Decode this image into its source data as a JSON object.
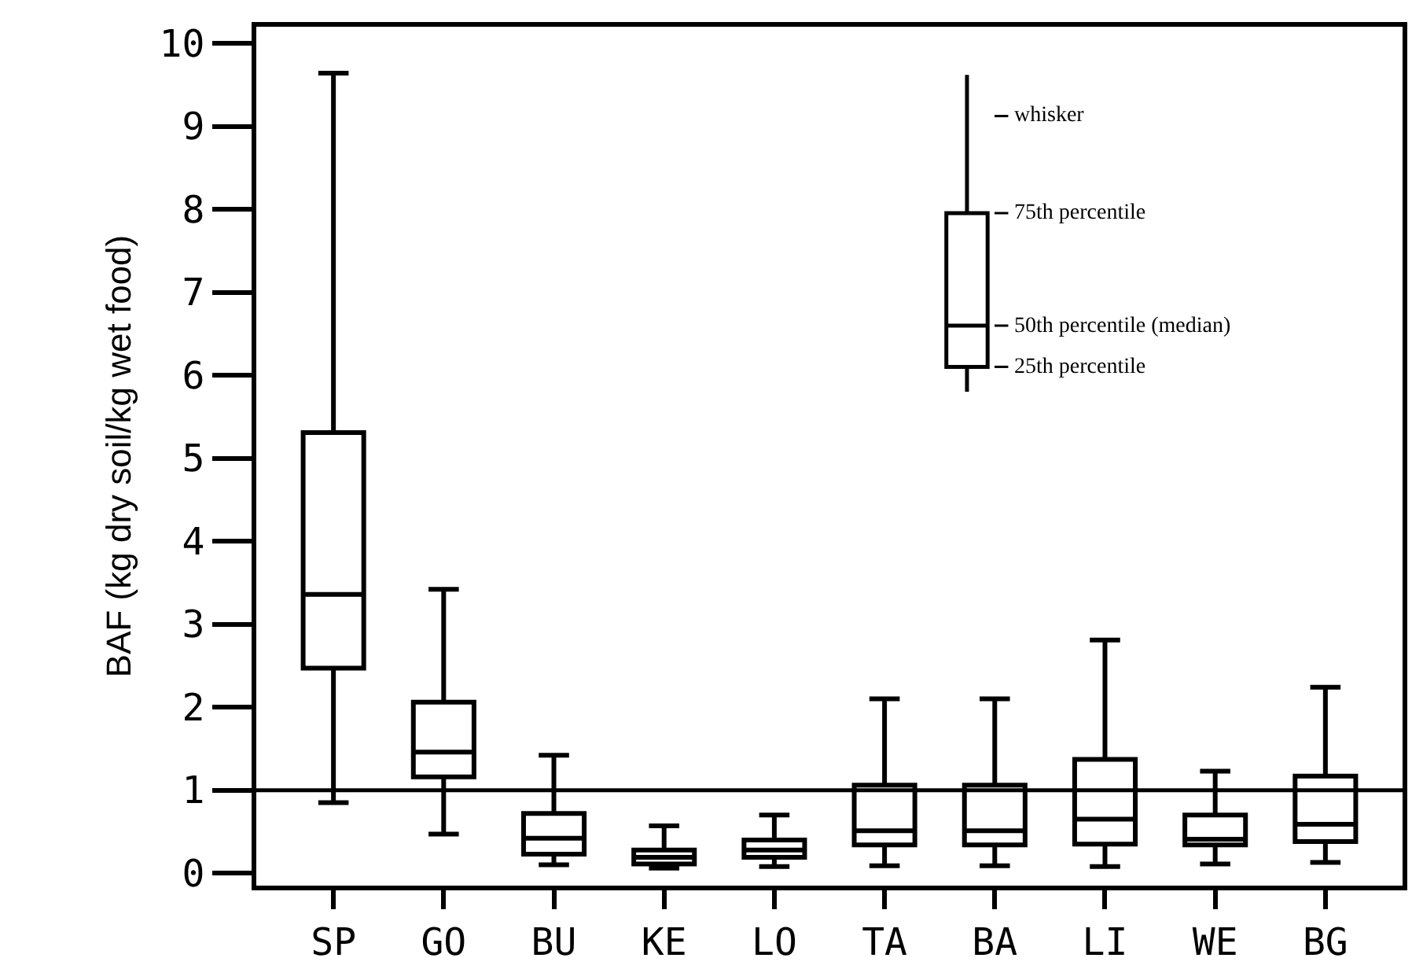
{
  "chart_data": {
    "type": "box",
    "ylabel": "BAF (kg dry soil/kg wet food)",
    "categories": [
      "SP",
      "GO",
      "BU",
      "KE",
      "LO",
      "TA",
      "BA",
      "LI",
      "WE",
      "BG"
    ],
    "boxes": [
      {
        "low": 0.85,
        "q1": 2.47,
        "median": 3.36,
        "q3": 5.31,
        "high": 9.64
      },
      {
        "low": 0.47,
        "q1": 1.16,
        "median": 1.46,
        "q3": 2.06,
        "high": 3.42
      },
      {
        "low": 0.1,
        "q1": 0.23,
        "median": 0.42,
        "q3": 0.72,
        "high": 1.42
      },
      {
        "low": 0.06,
        "q1": 0.11,
        "median": 0.19,
        "q3": 0.28,
        "high": 0.57
      },
      {
        "low": 0.08,
        "q1": 0.19,
        "median": 0.28,
        "q3": 0.4,
        "high": 0.7
      },
      {
        "low": 0.09,
        "q1": 0.34,
        "median": 0.51,
        "q3": 1.06,
        "high": 2.1
      },
      {
        "low": 0.09,
        "q1": 0.34,
        "median": 0.51,
        "q3": 1.06,
        "high": 2.1
      },
      {
        "low": 0.08,
        "q1": 0.35,
        "median": 0.65,
        "q3": 1.37,
        "high": 2.81
      },
      {
        "low": 0.11,
        "q1": 0.34,
        "median": 0.41,
        "q3": 0.7,
        "high": 1.23
      },
      {
        "low": 0.13,
        "q1": 0.38,
        "median": 0.59,
        "q3": 1.17,
        "high": 2.24
      }
    ],
    "color": "#000000",
    "ylim": [
      -0.15,
      10.2
    ],
    "yticks": [
      0,
      1,
      2,
      3,
      4,
      5,
      6,
      7,
      8,
      9,
      10
    ],
    "ref_lines": [
      {
        "axis": "y",
        "value": 1
      }
    ],
    "annotations": [
      "whisker",
      "75th percentile",
      "50th percentile (median)",
      "25th percentile"
    ]
  }
}
